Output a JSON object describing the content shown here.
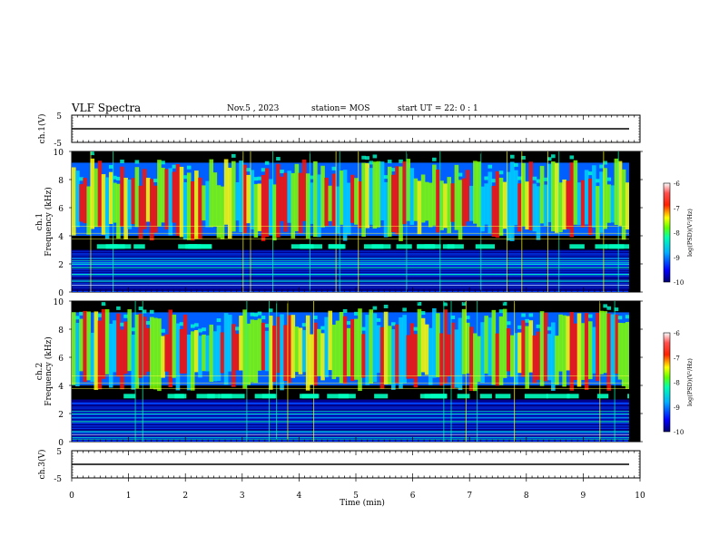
{
  "header": {
    "title": "VLF Spectra",
    "date": "Nov.5 , 2023",
    "station": "station= MOS",
    "start": "start UT =  22: 0 : 1"
  },
  "colors": {
    "colormap": [
      "#000070",
      "#0000ff",
      "#00a0ff",
      "#00ffc0",
      "#80ff00",
      "#ffff00",
      "#ff8000",
      "#ff0000",
      "#ff5050",
      "#ffffff"
    ],
    "trace": "#000000"
  },
  "chart_data": [
    {
      "type": "line",
      "name": "ch.1 waveform",
      "ylabel": "ch.1(V)",
      "yticks": [
        "5",
        "-5"
      ],
      "ylim": [
        -5,
        5
      ],
      "level": 0
    },
    {
      "type": "heatmap",
      "name": "ch.1 spectrogram",
      "ylabel": "ch.1\nFrequency (kHz)",
      "yticks": [
        "0",
        "2",
        "4",
        "6",
        "8",
        "10"
      ],
      "ylim": [
        0,
        10
      ],
      "xlim": [
        0,
        10
      ],
      "colorbar": {
        "ticks": [
          "-6",
          "-7",
          "-8",
          "-9",
          "-10"
        ],
        "label": "log(PSD)(V²/Hz)"
      }
    },
    {
      "type": "heatmap",
      "name": "ch.2 spectrogram",
      "ylabel": "ch.2\nFrequency (kHz)",
      "yticks": [
        "0",
        "2",
        "4",
        "6",
        "8",
        "10"
      ],
      "ylim": [
        0,
        10
      ],
      "xlim": [
        0,
        10
      ],
      "colorbar": {
        "ticks": [
          "-6",
          "-7",
          "-8",
          "-9",
          "-10"
        ],
        "label": "log(PSD)(V²/Hz)"
      }
    },
    {
      "type": "line",
      "name": "ch.3 waveform",
      "ylabel": "ch.3(V)",
      "yticks": [
        "5",
        "-5"
      ],
      "ylim": [
        -5,
        5
      ],
      "level": 0
    }
  ],
  "xaxis": {
    "label": "Time (min)",
    "ticks": [
      "0",
      "1",
      "2",
      "3",
      "4",
      "5",
      "6",
      "7",
      "8",
      "9",
      "10"
    ],
    "xlim": [
      0,
      10
    ]
  }
}
